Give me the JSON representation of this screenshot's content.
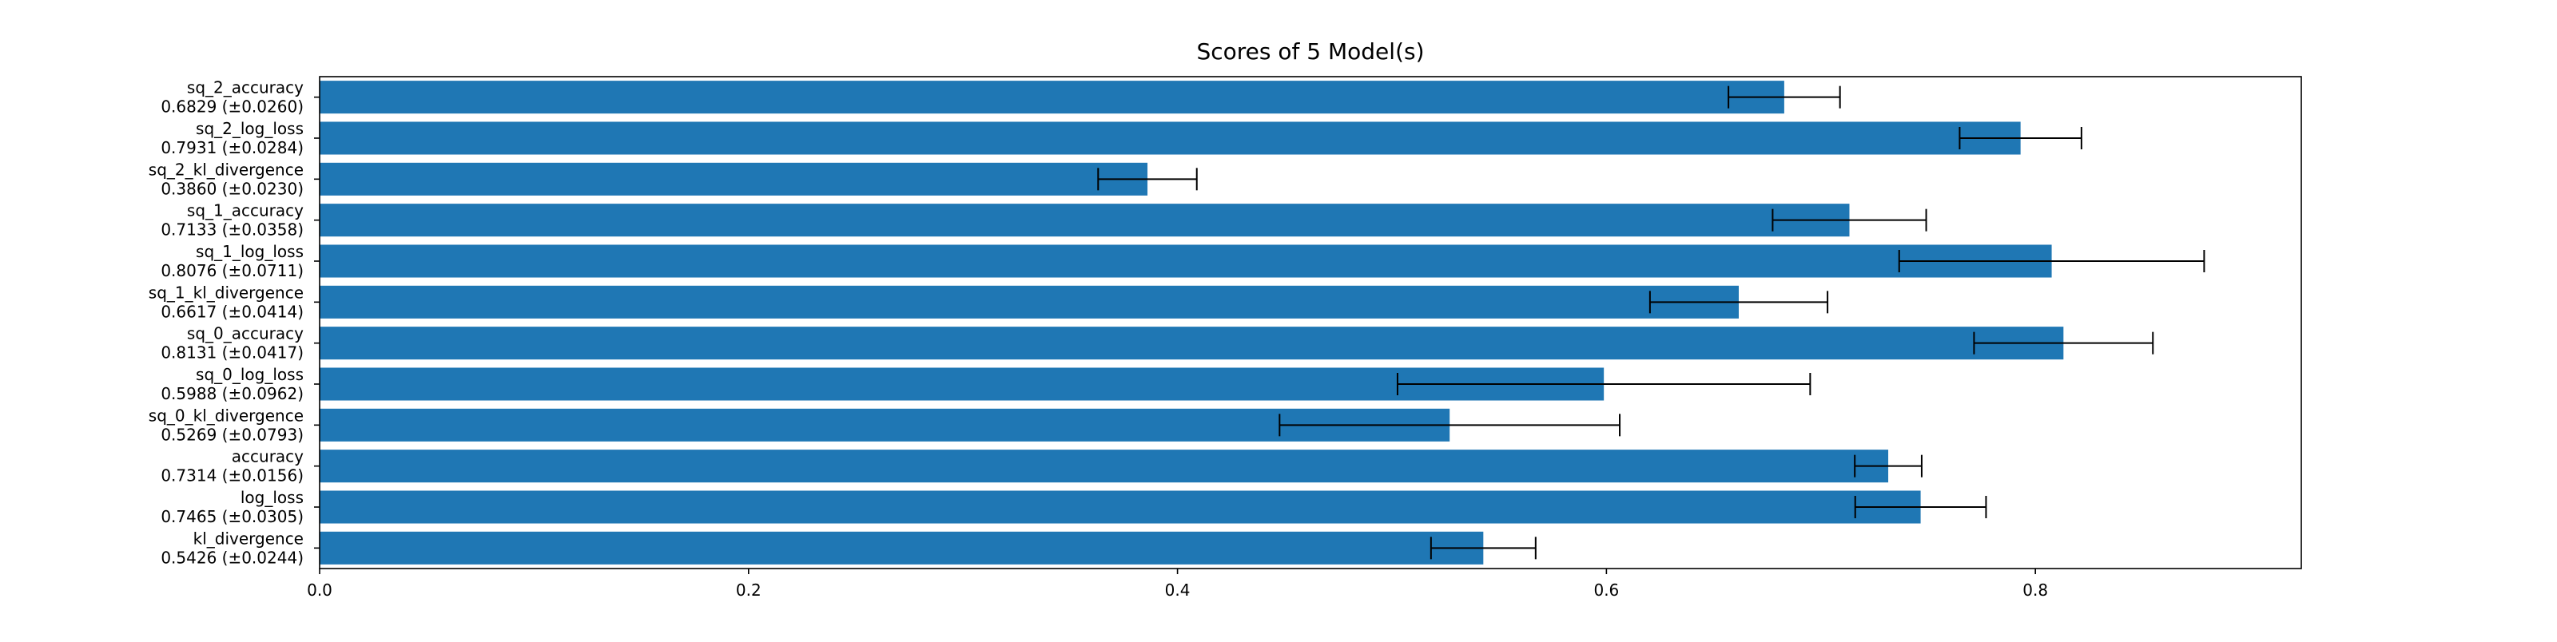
{
  "chart_data": {
    "type": "bar",
    "orientation": "horizontal",
    "title": "Scores of 5 Model(s)",
    "xlabel": "",
    "ylabel": "",
    "xlim": [
      0.0,
      0.924
    ],
    "xticks": [
      0.0,
      0.2,
      0.4,
      0.6,
      0.8
    ],
    "xtick_labels": [
      "0.0",
      "0.2",
      "0.4",
      "0.6",
      "0.8"
    ],
    "grid": false,
    "legend": "none",
    "bar_color": "#1f77b4",
    "error_color": "#000000",
    "categories": [
      {
        "name": "sq_2_accuracy",
        "label": "0.6829 (±0.0260)",
        "value": 0.6829,
        "error": 0.026
      },
      {
        "name": "sq_2_log_loss",
        "label": "0.7931 (±0.0284)",
        "value": 0.7931,
        "error": 0.0284
      },
      {
        "name": "sq_2_kl_divergence",
        "label": "0.3860 (±0.0230)",
        "value": 0.386,
        "error": 0.023
      },
      {
        "name": "sq_1_accuracy",
        "label": "0.7133 (±0.0358)",
        "value": 0.7133,
        "error": 0.0358
      },
      {
        "name": "sq_1_log_loss",
        "label": "0.8076 (±0.0711)",
        "value": 0.8076,
        "error": 0.0711
      },
      {
        "name": "sq_1_kl_divergence",
        "label": "0.6617 (±0.0414)",
        "value": 0.6617,
        "error": 0.0414
      },
      {
        "name": "sq_0_accuracy",
        "label": "0.8131 (±0.0417)",
        "value": 0.8131,
        "error": 0.0417
      },
      {
        "name": "sq_0_log_loss",
        "label": "0.5988 (±0.0962)",
        "value": 0.5988,
        "error": 0.0962
      },
      {
        "name": "sq_0_kl_divergence",
        "label": "0.5269 (±0.0793)",
        "value": 0.5269,
        "error": 0.0793
      },
      {
        "name": "accuracy",
        "label": "0.7314 (±0.0156)",
        "value": 0.7314,
        "error": 0.0156
      },
      {
        "name": "log_loss",
        "label": "0.7465 (±0.0305)",
        "value": 0.7465,
        "error": 0.0305
      },
      {
        "name": "kl_divergence",
        "label": "0.5426 (±0.0244)",
        "value": 0.5426,
        "error": 0.0244
      }
    ]
  }
}
